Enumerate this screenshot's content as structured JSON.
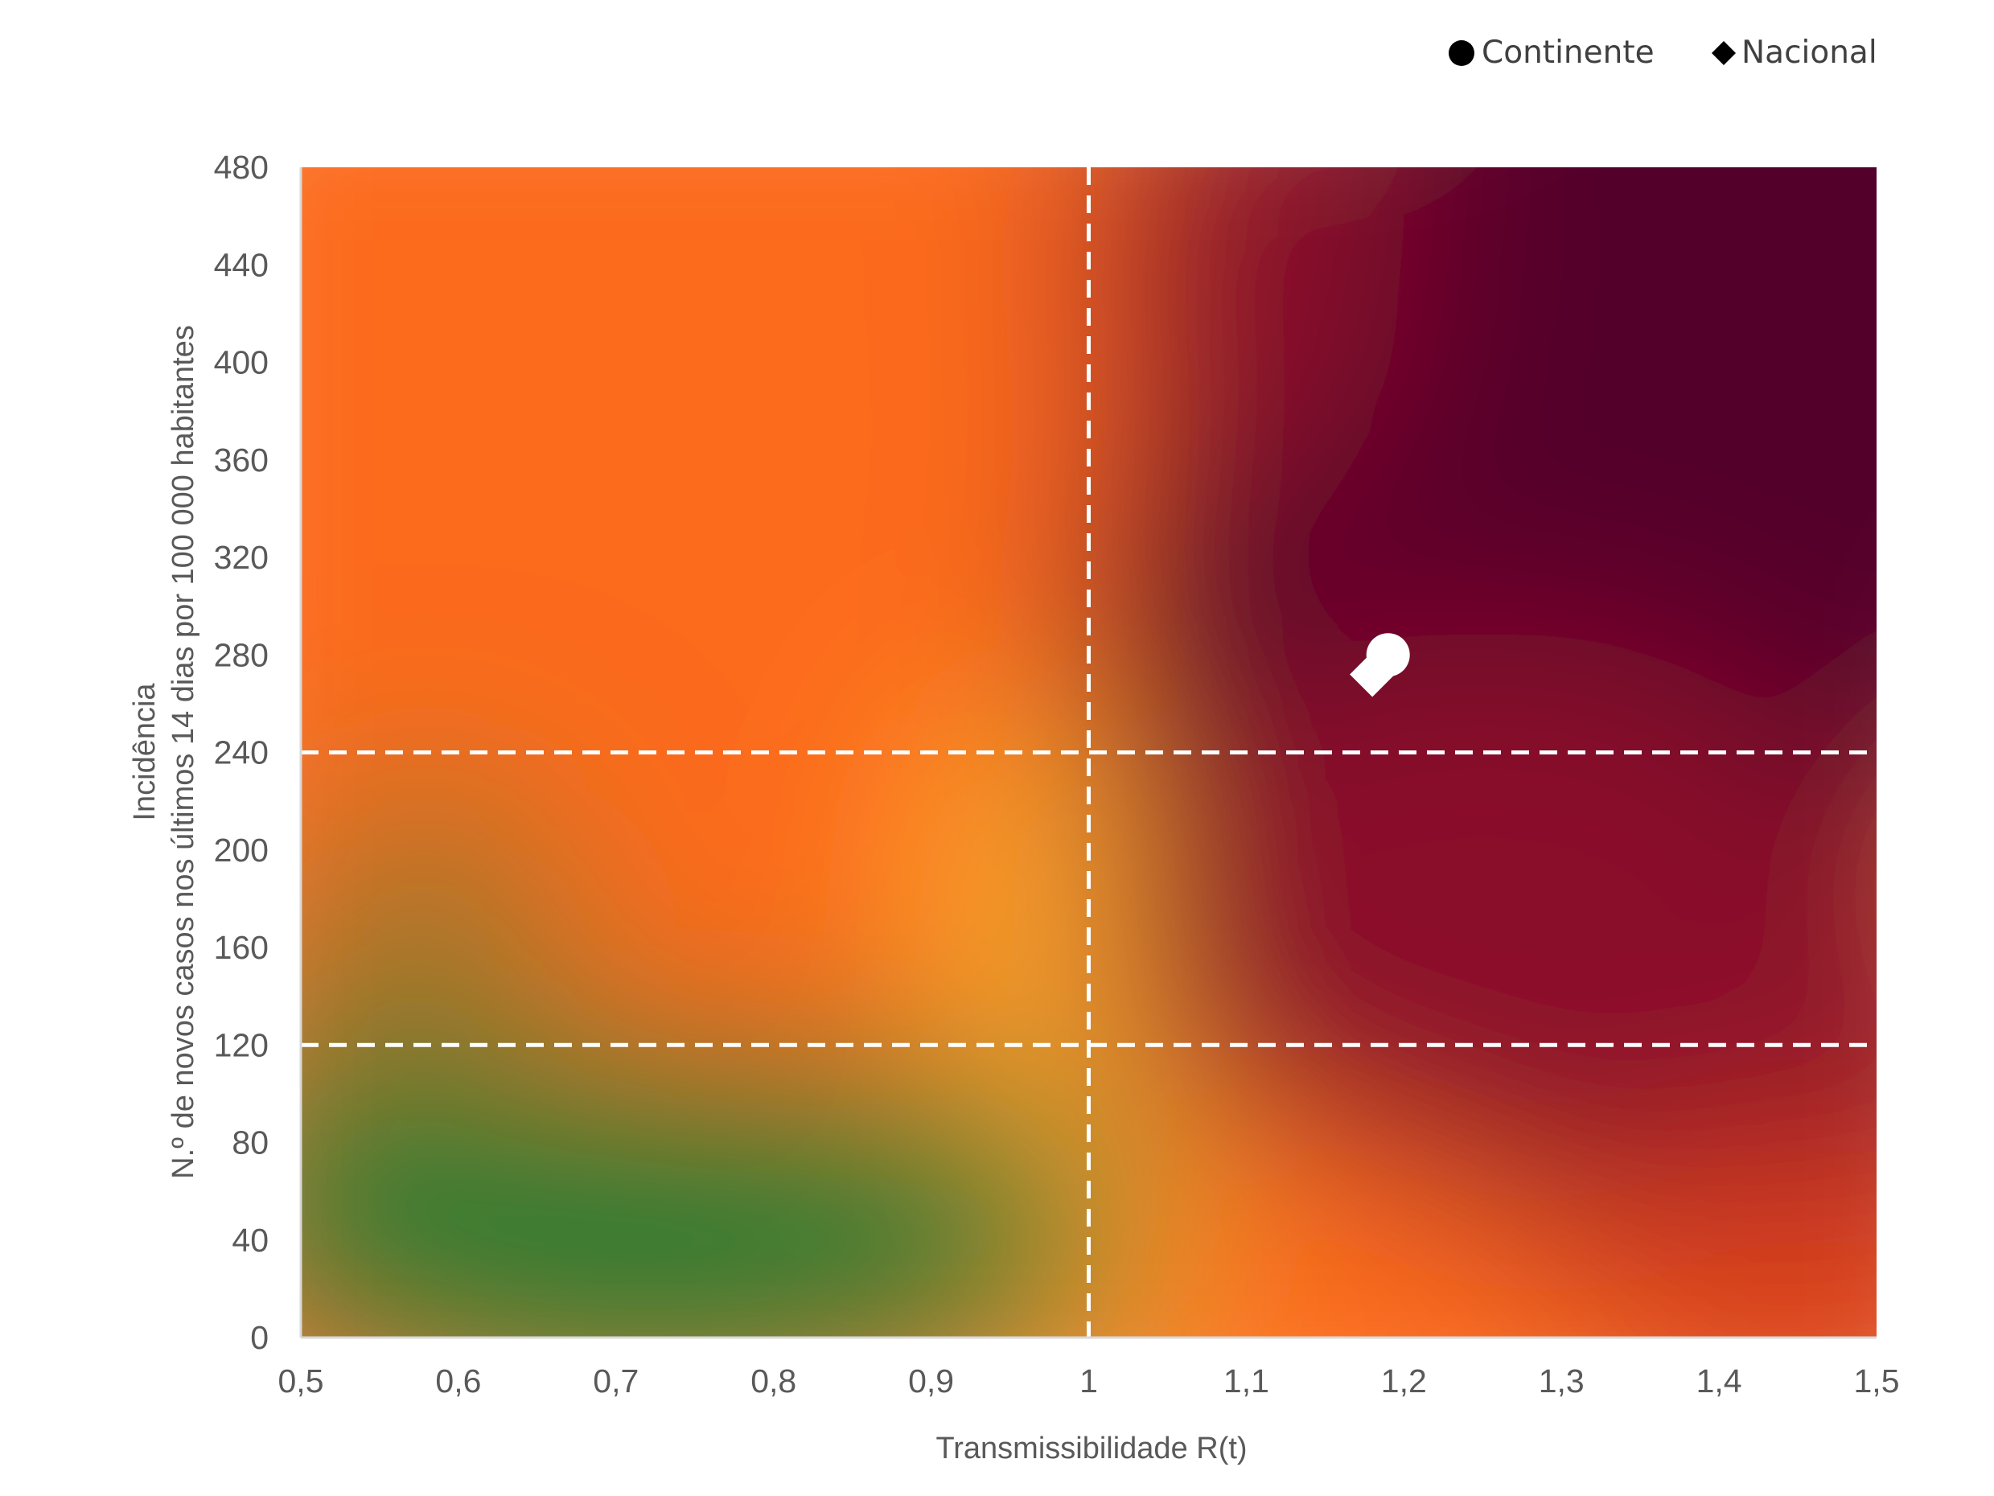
{
  "chart_data": {
    "type": "scatter",
    "x": {
      "label": "Transmissibilidade R(t)",
      "range": [
        0.5,
        1.5
      ],
      "ticks": [
        0.5,
        0.6,
        0.7,
        0.8,
        0.9,
        1.0,
        1.1,
        1.2,
        1.3,
        1.4,
        1.5
      ],
      "tick_labels": [
        "0,5",
        "0,6",
        "0,7",
        "0,8",
        "0,9",
        "1",
        "1,1",
        "1,2",
        "1,3",
        "1,4",
        "1,5"
      ]
    },
    "y": {
      "label_line1": "Incidência",
      "label_line2": "N.º de novos casos nos últimos 14 dias por 100 000 habitantes",
      "range": [
        0,
        480
      ],
      "ticks": [
        0,
        40,
        80,
        120,
        160,
        200,
        240,
        280,
        320,
        360,
        400,
        440,
        480
      ],
      "tick_labels": [
        "0",
        "40",
        "80",
        "120",
        "160",
        "200",
        "240",
        "280",
        "320",
        "360",
        "400",
        "440",
        "480"
      ]
    },
    "threshold_lines": {
      "x": [
        1.0
      ],
      "y": [
        120,
        240
      ]
    },
    "series": [
      {
        "name": "Continente",
        "marker": "circle",
        "color": "#ffffff",
        "points": [
          {
            "x": 1.19,
            "y": 280
          }
        ]
      },
      {
        "name": "Nacional",
        "marker": "diamond",
        "color": "#ffffff",
        "points": [
          {
            "x": 1.18,
            "y": 272
          }
        ]
      }
    ],
    "legend": {
      "position": "top-right",
      "entries": [
        {
          "name": "Continente",
          "marker": "circle",
          "color": "#000000"
        },
        {
          "name": "Nacional",
          "marker": "diamond",
          "color": "#000000"
        }
      ]
    },
    "background_colors": {
      "green": "#2a7d33",
      "yellow": "#f8a42b",
      "orange": "#fc6a1b",
      "red": "#d8401f",
      "dark_red": "#8a0c2c",
      "maroon": "#520029"
    }
  }
}
